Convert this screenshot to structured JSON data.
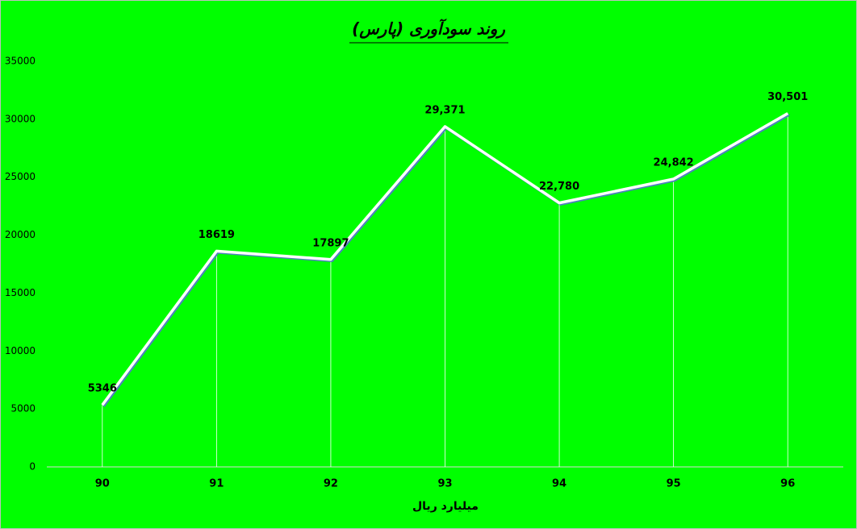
{
  "chart_data": {
    "type": "line",
    "title": "روند سودآوری (پارس)",
    "x_label": "میلیارد ریال",
    "categories": [
      "90",
      "91",
      "92",
      "93",
      "94",
      "95",
      "96"
    ],
    "series": [
      {
        "color": "#ffffff",
        "shadow_color": "#4f81bd",
        "values": [
          5346,
          18619,
          17897,
          29371,
          22780,
          24842,
          30501
        ],
        "value_labels": [
          "5346",
          "18619",
          "17897",
          "29,371",
          "22,780",
          "24,842",
          "30,501"
        ]
      }
    ],
    "ylim": [
      0,
      35000
    ],
    "yticks": [
      0,
      5000,
      10000,
      15000,
      20000,
      25000,
      30000,
      35000
    ],
    "drop_lines": true,
    "background": "#00ff00"
  }
}
